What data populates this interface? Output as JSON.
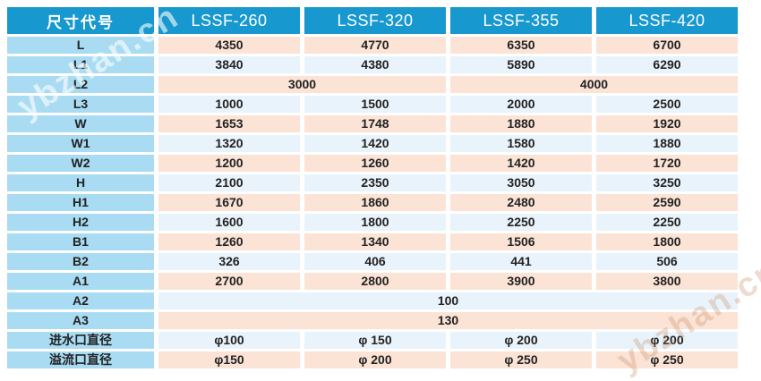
{
  "watermark": {
    "text": "ybzhan.cn"
  },
  "colors": {
    "header_bg": "#1798ce",
    "header_text": "#ffffff",
    "label_col_bg": "#a9dcf2",
    "row_pink": "#fbe3d6",
    "row_blue": "#e9f3fb",
    "cell_text": "#222222"
  },
  "table": {
    "header": [
      "尺寸代号",
      "LSSF-260",
      "LSSF-320",
      "LSSF-355",
      "LSSF-420"
    ],
    "rows": [
      {
        "label": "L",
        "tone": "pink",
        "cells": [
          {
            "v": "4350"
          },
          {
            "v": "4770"
          },
          {
            "v": "6350"
          },
          {
            "v": "6700"
          }
        ]
      },
      {
        "label": "L1",
        "tone": "blue",
        "cells": [
          {
            "v": "3840"
          },
          {
            "v": "4380"
          },
          {
            "v": "5890"
          },
          {
            "v": "6290"
          }
        ]
      },
      {
        "label": "L2",
        "tone": "pink",
        "cells": [
          {
            "v": "3000",
            "span": 2
          },
          {
            "v": "4000",
            "span": 2
          }
        ]
      },
      {
        "label": "L3",
        "tone": "blue",
        "cells": [
          {
            "v": "1000"
          },
          {
            "v": "1500"
          },
          {
            "v": "2000"
          },
          {
            "v": "2500"
          }
        ]
      },
      {
        "label": "W",
        "tone": "pink",
        "cells": [
          {
            "v": "1653"
          },
          {
            "v": "1748"
          },
          {
            "v": "1880"
          },
          {
            "v": "1920"
          }
        ]
      },
      {
        "label": "W1",
        "tone": "blue",
        "cells": [
          {
            "v": "1320"
          },
          {
            "v": "1420"
          },
          {
            "v": "1580"
          },
          {
            "v": "1880"
          }
        ]
      },
      {
        "label": "W2",
        "tone": "pink",
        "cells": [
          {
            "v": "1200"
          },
          {
            "v": "1260"
          },
          {
            "v": "1420"
          },
          {
            "v": "1720"
          }
        ]
      },
      {
        "label": "H",
        "tone": "blue",
        "cells": [
          {
            "v": "2100"
          },
          {
            "v": "2350"
          },
          {
            "v": "3050"
          },
          {
            "v": "3250"
          }
        ]
      },
      {
        "label": "H1",
        "tone": "pink",
        "cells": [
          {
            "v": "1670"
          },
          {
            "v": "1860"
          },
          {
            "v": "2480"
          },
          {
            "v": "2590"
          }
        ]
      },
      {
        "label": "H2",
        "tone": "blue",
        "cells": [
          {
            "v": "1600"
          },
          {
            "v": "1800"
          },
          {
            "v": "2250"
          },
          {
            "v": "2250"
          }
        ]
      },
      {
        "label": "B1",
        "tone": "pink",
        "cells": [
          {
            "v": "1260"
          },
          {
            "v": "1340"
          },
          {
            "v": "1506"
          },
          {
            "v": "1800"
          }
        ]
      },
      {
        "label": "B2",
        "tone": "blue",
        "cells": [
          {
            "v": "326"
          },
          {
            "v": "406"
          },
          {
            "v": "441"
          },
          {
            "v": "506"
          }
        ]
      },
      {
        "label": "A1",
        "tone": "pink",
        "cells": [
          {
            "v": "2700"
          },
          {
            "v": "2800"
          },
          {
            "v": "3900"
          },
          {
            "v": "3800"
          }
        ]
      },
      {
        "label": "A2",
        "tone": "blue",
        "cells": [
          {
            "v": "100",
            "span": 4
          }
        ]
      },
      {
        "label": "A3",
        "tone": "pink",
        "cells": [
          {
            "v": "130",
            "span": 4
          }
        ]
      },
      {
        "label": "进水口直径",
        "tone": "blue",
        "cells": [
          {
            "v": "φ100"
          },
          {
            "v": "φ 150"
          },
          {
            "v": "φ 200"
          },
          {
            "v": "φ 200"
          }
        ]
      },
      {
        "label": "溢流口直径",
        "tone": "pink",
        "cells": [
          {
            "v": "φ150"
          },
          {
            "v": "φ 200"
          },
          {
            "v": "φ 250"
          },
          {
            "v": "φ 250"
          }
        ]
      }
    ]
  }
}
